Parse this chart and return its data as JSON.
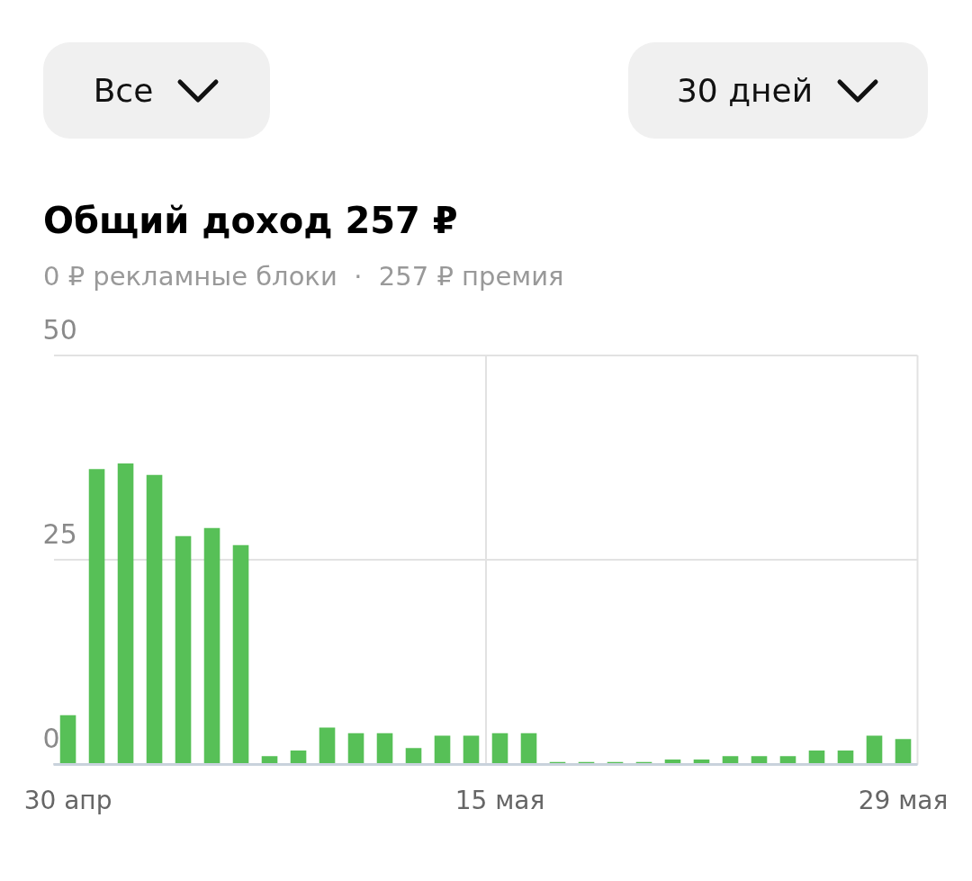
{
  "chart_data": {
    "type": "bar",
    "title": "Общий доход 257 ₽",
    "subtitle": "0 ₽ рекламные блоки  ·  257 ₽ премия",
    "annotations": [
      "Все",
      "30 дней"
    ],
    "categories": [
      "30 апр",
      null,
      null,
      null,
      null,
      null,
      null,
      null,
      null,
      null,
      null,
      null,
      null,
      null,
      null,
      "15 мая",
      null,
      null,
      null,
      null,
      null,
      null,
      null,
      null,
      null,
      null,
      null,
      null,
      null,
      "29 мая"
    ],
    "values": [
      6,
      36.1,
      36.8,
      35.4,
      27.9,
      28.9,
      26.8,
      1,
      1.7,
      4.5,
      3.8,
      3.8,
      2,
      3.5,
      3.5,
      3.8,
      3.8,
      0.3,
      0.3,
      0.3,
      0.3,
      0.6,
      0.6,
      1,
      1,
      1,
      1.7,
      1.7,
      3.5,
      3.1
    ],
    "color": "#57c057",
    "ylim": [
      0,
      50
    ],
    "yticks": [
      0,
      25,
      50
    ],
    "grid": true
  }
}
